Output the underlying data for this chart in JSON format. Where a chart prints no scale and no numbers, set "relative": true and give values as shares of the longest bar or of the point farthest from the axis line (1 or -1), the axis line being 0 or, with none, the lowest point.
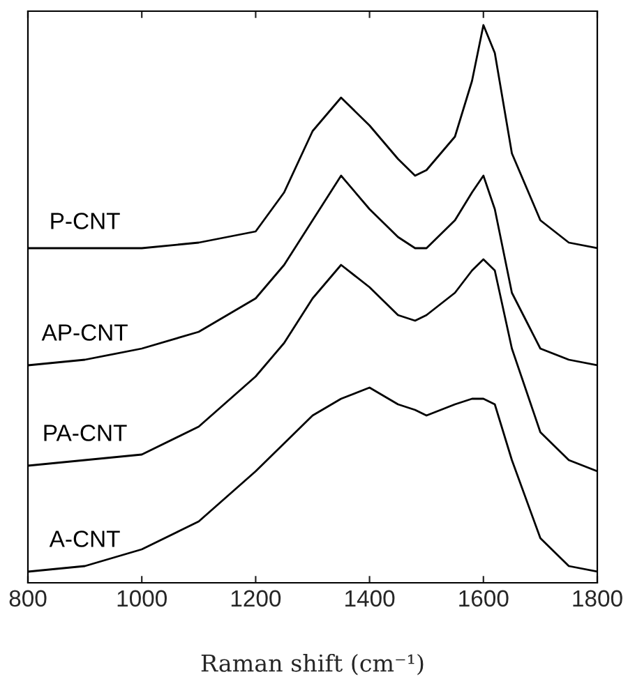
{
  "chart_data": {
    "type": "line",
    "relative": true,
    "xlabel": "Raman shift (cm⁻¹)",
    "xlim": [
      800,
      1800
    ],
    "xticks": [
      800,
      1000,
      1200,
      1400,
      1600,
      1800
    ],
    "tick_labels": "x",
    "grid": false,
    "legend": false,
    "x": [
      800,
      900,
      1000,
      1100,
      1200,
      1250,
      1300,
      1350,
      1400,
      1450,
      1480,
      1500,
      1550,
      1580,
      1600,
      1620,
      1650,
      1700,
      1750,
      1800
    ],
    "series": [
      {
        "name": "P-CNT",
        "color": "#000000",
        "values": [
          0.6,
          0.6,
          0.6,
          0.61,
          0.63,
          0.7,
          0.81,
          0.87,
          0.82,
          0.76,
          0.73,
          0.74,
          0.8,
          0.9,
          1.0,
          0.95,
          0.77,
          0.65,
          0.61,
          0.6
        ]
      },
      {
        "name": "AP-CNT",
        "color": "#000000",
        "values": [
          0.39,
          0.4,
          0.42,
          0.45,
          0.51,
          0.57,
          0.65,
          0.73,
          0.67,
          0.62,
          0.6,
          0.6,
          0.65,
          0.7,
          0.73,
          0.67,
          0.52,
          0.42,
          0.4,
          0.39
        ]
      },
      {
        "name": "PA-CNT",
        "color": "#000000",
        "values": [
          0.21,
          0.22,
          0.23,
          0.28,
          0.37,
          0.43,
          0.51,
          0.57,
          0.53,
          0.48,
          0.47,
          0.48,
          0.52,
          0.56,
          0.58,
          0.56,
          0.42,
          0.27,
          0.22,
          0.2
        ]
      },
      {
        "name": "A-CNT",
        "color": "#000000",
        "values": [
          0.02,
          0.03,
          0.06,
          0.11,
          0.2,
          0.25,
          0.3,
          0.33,
          0.35,
          0.32,
          0.31,
          0.3,
          0.32,
          0.33,
          0.33,
          0.32,
          0.22,
          0.08,
          0.03,
          0.02
        ]
      }
    ]
  }
}
